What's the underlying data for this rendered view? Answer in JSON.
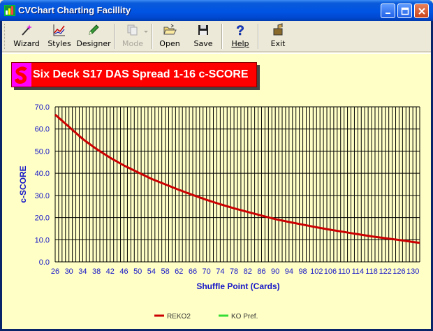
{
  "window": {
    "title": "CVChart Charting Facillity"
  },
  "toolbar": {
    "items": [
      {
        "label": "Wizard",
        "icon": "wizard-wand-icon",
        "enabled": true
      },
      {
        "label": "Styles",
        "icon": "chart-styles-icon",
        "enabled": true
      },
      {
        "label": "Designer",
        "icon": "designer-pen-icon",
        "enabled": true
      },
      {
        "label": "Mode",
        "icon": "mode-copy-icon",
        "enabled": false
      },
      {
        "label": "Open",
        "icon": "open-folder-icon",
        "enabled": true
      },
      {
        "label": "Save",
        "icon": "save-disk-icon",
        "enabled": true
      },
      {
        "label": "Help",
        "icon": "help-question-icon",
        "enabled": true
      },
      {
        "label": "Exit",
        "icon": "exit-icon",
        "enabled": true
      }
    ]
  },
  "chart_data": {
    "type": "line",
    "title": "Six Deck S17 DAS Spread 1-16 c-SCORE",
    "xlabel": "Shuffle Point (Cards)",
    "ylabel": "c-SCORE",
    "xlim": [
      26,
      132
    ],
    "ylim": [
      0,
      70
    ],
    "x_ticks": [
      "26",
      "30",
      "34",
      "38",
      "42",
      "46",
      "50",
      "54",
      "58",
      "62",
      "66",
      "70",
      "74",
      "78",
      "82",
      "86",
      "90",
      "94",
      "98",
      "102",
      "106",
      "110",
      "114",
      "118",
      "122",
      "126",
      "130"
    ],
    "y_ticks": [
      "0.0",
      "10.0",
      "20.0",
      "30.0",
      "40.0",
      "50.0",
      "60.0",
      "70.0"
    ],
    "grid": true,
    "legend_position": "bottom",
    "series": [
      {
        "name": "REKO2",
        "color": "#cc0000",
        "x": [
          26,
          30,
          34,
          38,
          42,
          46,
          50,
          54,
          58,
          62,
          66,
          70,
          74,
          78,
          82,
          86,
          90,
          94,
          98,
          102,
          106,
          110,
          114,
          118,
          122,
          126,
          130,
          132
        ],
        "y": [
          66.5,
          61.0,
          55.5,
          51.0,
          47.0,
          43.5,
          40.5,
          37.5,
          35.0,
          32.5,
          30.2,
          28.0,
          26.0,
          24.2,
          22.5,
          20.9,
          19.3,
          18.0,
          16.8,
          15.6,
          14.5,
          13.5,
          12.5,
          11.5,
          10.7,
          9.9,
          9.0,
          8.6
        ]
      },
      {
        "name": "KO Pref.",
        "color": "#33dd33",
        "x": [],
        "y": []
      }
    ]
  }
}
